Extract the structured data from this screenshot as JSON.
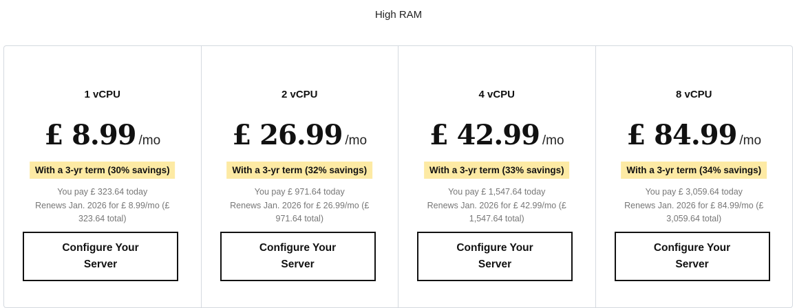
{
  "tab": "High RAM",
  "plans": [
    {
      "title": "1 vCPU",
      "price": "£ 8.99",
      "per": "/mo",
      "badge": "With a 3-yr term (30% savings)",
      "pay": "You pay £ 323.64 today",
      "renew": "Renews Jan. 2026 for £ 8.99/mo (£ 323.64 total)",
      "button": "Configure Your Server"
    },
    {
      "title": "2 vCPU",
      "price": "£ 26.99",
      "per": "/mo",
      "badge": "With a 3-yr term (32% savings)",
      "pay": "You pay £ 971.64 today",
      "renew": "Renews Jan. 2026 for £ 26.99/mo (£ 971.64 total)",
      "button": "Configure Your Server"
    },
    {
      "title": "4 vCPU",
      "price": "£ 42.99",
      "per": "/mo",
      "badge": "With a 3-yr term (33% savings)",
      "pay": "You pay £ 1,547.64 today",
      "renew": "Renews Jan. 2026 for £ 42.99/mo (£ 1,547.64 total)",
      "button": "Configure Your Server"
    },
    {
      "title": "8 vCPU",
      "price": "£ 84.99",
      "per": "/mo",
      "badge": "With a 3-yr term (34% savings)",
      "pay": "You pay £ 3,059.64 today",
      "renew": "Renews Jan. 2026 for £ 84.99/mo (£ 3,059.64 total)",
      "button": "Configure Your Server"
    }
  ],
  "colors": {
    "badge": "#fdeaa4",
    "border": "#d4d9df"
  }
}
